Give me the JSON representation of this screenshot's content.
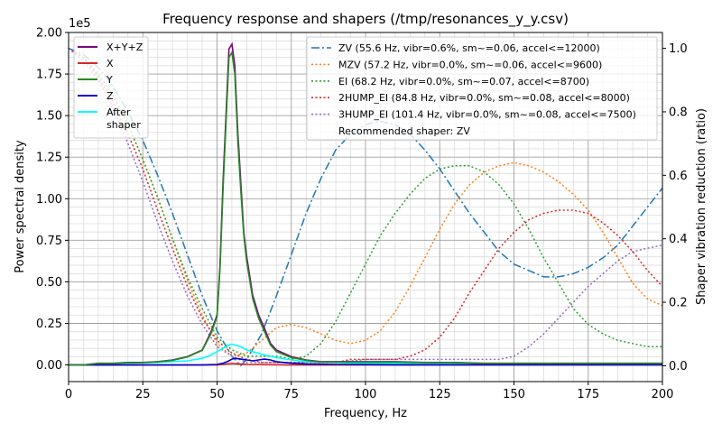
{
  "chart_data": {
    "type": "line",
    "title": "Frequency response and shapers (/tmp/resonances_y_y.csv)",
    "xlabel": "Frequency, Hz",
    "ylabel": "Power spectral density",
    "y2label": "Shaper vibration reduction (ratio)",
    "y_offset_label": "1e5",
    "xlim": [
      0,
      200
    ],
    "ylim": [
      -10000,
      200000
    ],
    "y2lim": [
      -0.05,
      1.05
    ],
    "x_ticks": [
      0,
      25,
      50,
      75,
      100,
      125,
      150,
      175,
      200
    ],
    "x_tick_labels": [
      "0",
      "25",
      "50",
      "75",
      "100",
      "125",
      "150",
      "175",
      "200"
    ],
    "y_ticks": [
      0,
      25000,
      50000,
      75000,
      100000,
      125000,
      150000,
      175000,
      200000
    ],
    "y_tick_labels": [
      "0.00",
      "0.25",
      "0.50",
      "0.75",
      "1.00",
      "1.25",
      "1.50",
      "1.75",
      "2.00"
    ],
    "y2_ticks": [
      0,
      0.2,
      0.4,
      0.6,
      0.8,
      1.0
    ],
    "y2_tick_labels": [
      "0.0",
      "0.2",
      "0.4",
      "0.6",
      "0.8",
      "1.0"
    ],
    "grid": true,
    "legend_left_placement": "top-left",
    "legend_right_placement": "top-right",
    "recommended_text": "Recommended shaper: ZV",
    "psd_series": [
      {
        "name": "X+Y+Z",
        "color": "#800080",
        "style": "solid",
        "x": [
          0,
          5,
          10,
          15,
          20,
          25,
          30,
          35,
          40,
          45,
          48,
          50,
          51,
          52,
          53,
          54,
          55,
          56,
          57,
          58,
          59,
          60,
          62,
          64,
          66,
          68,
          70,
          75,
          80,
          85,
          90,
          100,
          110,
          120,
          130,
          140,
          150,
          160,
          170,
          175,
          180,
          190,
          200
        ],
        "y": [
          0,
          0,
          1000,
          1000,
          1500,
          1500,
          2000,
          3000,
          5000,
          9000,
          20000,
          30000,
          60000,
          110000,
          150000,
          190000,
          193000,
          180000,
          140000,
          110000,
          80000,
          65000,
          42000,
          30000,
          22000,
          13000,
          9000,
          5000,
          3000,
          2000,
          2000,
          2000,
          2000,
          1500,
          1500,
          1000,
          1000,
          1000,
          1000,
          1000,
          1000,
          1000,
          1000
        ]
      },
      {
        "name": "X",
        "color": "#d62728",
        "style": "solid",
        "x": [
          0,
          50,
          52,
          54,
          55,
          56,
          58,
          60,
          65,
          70,
          75,
          100,
          150,
          200
        ],
        "y": [
          0,
          0,
          300,
          800,
          1000,
          800,
          500,
          300,
          200,
          100,
          0,
          0,
          0,
          0
        ]
      },
      {
        "name": "Y",
        "color": "#228b22",
        "style": "solid",
        "x": [
          0,
          5,
          10,
          15,
          20,
          25,
          30,
          35,
          40,
          45,
          48,
          50,
          51,
          52,
          53,
          54,
          55,
          56,
          57,
          58,
          59,
          60,
          62,
          64,
          66,
          68,
          70,
          75,
          80,
          85,
          90,
          100,
          110,
          120,
          130,
          140,
          150,
          160,
          170,
          175,
          180,
          190,
          200
        ],
        "y": [
          0,
          0,
          900,
          900,
          1400,
          1400,
          1900,
          2800,
          4800,
          8800,
          19000,
          29000,
          58000,
          105000,
          145000,
          185000,
          188000,
          175000,
          135000,
          105000,
          78000,
          62000,
          40000,
          28000,
          20000,
          12000,
          8000,
          4500,
          2800,
          1800,
          1800,
          1800,
          1800,
          1400,
          1400,
          900,
          900,
          900,
          900,
          900,
          900,
          900,
          900
        ]
      },
      {
        "name": "Z",
        "color": "#0000cd",
        "style": "solid",
        "x": [
          0,
          45,
          50,
          52,
          54,
          55,
          56,
          58,
          60,
          62,
          64,
          66,
          68,
          70,
          75,
          80,
          90,
          100,
          110,
          125,
          150,
          175,
          200
        ],
        "y": [
          0,
          0,
          300,
          1000,
          2500,
          3500,
          4000,
          3500,
          3000,
          2500,
          3000,
          3500,
          3000,
          2000,
          1000,
          500,
          300,
          200,
          100,
          100,
          100,
          100,
          100
        ]
      },
      {
        "name": "After\nshaper",
        "color": "#00ffff",
        "style": "solid",
        "x": [
          0,
          5,
          10,
          20,
          30,
          40,
          45,
          48,
          50,
          52,
          54,
          55,
          56,
          58,
          60,
          62,
          64,
          66,
          70,
          75,
          80,
          90,
          100,
          110,
          120,
          130,
          150,
          170,
          175,
          180,
          200
        ],
        "y": [
          0,
          0,
          500,
          1000,
          1500,
          2500,
          4000,
          6000,
          8000,
          10000,
          12000,
          12500,
          12000,
          11000,
          9000,
          8000,
          7000,
          6000,
          4500,
          3000,
          2000,
          1500,
          1000,
          1000,
          500,
          500,
          500,
          800,
          1000,
          800,
          500
        ]
      }
    ],
    "shaper_series": [
      {
        "name": "ZV (55.6 Hz, vibr=0.6%, sm~=0.06, accel<=12000)",
        "color": "#1f77b4",
        "style": "dashdot",
        "x": [
          0,
          5,
          10,
          15,
          20,
          25,
          30,
          35,
          40,
          45,
          50,
          55,
          58,
          60,
          65,
          70,
          75,
          80,
          85,
          90,
          95,
          100,
          105,
          110,
          115,
          120,
          125,
          130,
          135,
          140,
          145,
          150,
          155,
          160,
          165,
          170,
          175,
          180,
          185,
          190,
          195,
          200
        ],
        "y": [
          1.0,
          0.98,
          0.94,
          0.88,
          0.8,
          0.71,
          0.6,
          0.48,
          0.35,
          0.22,
          0.11,
          0.03,
          0.0,
          0.02,
          0.1,
          0.22,
          0.35,
          0.48,
          0.59,
          0.68,
          0.73,
          0.76,
          0.77,
          0.76,
          0.73,
          0.68,
          0.62,
          0.55,
          0.48,
          0.42,
          0.36,
          0.32,
          0.3,
          0.28,
          0.28,
          0.29,
          0.31,
          0.34,
          0.38,
          0.44,
          0.5,
          0.56
        ]
      },
      {
        "name": "MZV (57.2 Hz, vibr=0.0%, sm~=0.06, accel<=9600)",
        "color": "#ff7f0e",
        "style": "dotted",
        "x": [
          0,
          5,
          10,
          15,
          20,
          25,
          30,
          35,
          40,
          45,
          50,
          55,
          60,
          65,
          70,
          75,
          80,
          85,
          90,
          95,
          100,
          105,
          110,
          115,
          120,
          125,
          130,
          135,
          140,
          145,
          150,
          155,
          160,
          165,
          170,
          175,
          180,
          185,
          190,
          195,
          200
        ],
        "y": [
          1.0,
          0.97,
          0.92,
          0.85,
          0.76,
          0.65,
          0.53,
          0.4,
          0.27,
          0.16,
          0.07,
          0.03,
          0.04,
          0.08,
          0.12,
          0.13,
          0.12,
          0.1,
          0.08,
          0.07,
          0.08,
          0.11,
          0.17,
          0.25,
          0.34,
          0.43,
          0.51,
          0.57,
          0.61,
          0.63,
          0.64,
          0.63,
          0.61,
          0.58,
          0.54,
          0.49,
          0.42,
          0.34,
          0.26,
          0.21,
          0.19
        ]
      },
      {
        "name": "EI (68.2 Hz, vibr=0.0%, sm~=0.07, accel<=8700)",
        "color": "#2ca02c",
        "style": "dotted",
        "x": [
          0,
          5,
          10,
          15,
          20,
          25,
          30,
          35,
          40,
          45,
          50,
          55,
          60,
          65,
          70,
          75,
          80,
          85,
          90,
          95,
          100,
          105,
          110,
          115,
          120,
          125,
          130,
          135,
          140,
          145,
          150,
          155,
          160,
          165,
          170,
          175,
          180,
          185,
          190,
          195,
          200
        ],
        "y": [
          1.0,
          0.97,
          0.92,
          0.85,
          0.76,
          0.65,
          0.53,
          0.4,
          0.28,
          0.18,
          0.09,
          0.05,
          0.03,
          0.03,
          0.03,
          0.02,
          0.03,
          0.07,
          0.14,
          0.23,
          0.32,
          0.41,
          0.48,
          0.54,
          0.59,
          0.62,
          0.63,
          0.63,
          0.61,
          0.57,
          0.51,
          0.43,
          0.34,
          0.26,
          0.18,
          0.13,
          0.1,
          0.08,
          0.07,
          0.06,
          0.06
        ]
      },
      {
        "name": "2HUMP_EI (84.8 Hz, vibr=0.0%, sm~=0.08, accel<=8000)",
        "color": "#d62728",
        "style": "dotted",
        "x": [
          0,
          5,
          10,
          15,
          20,
          25,
          30,
          35,
          40,
          45,
          50,
          55,
          60,
          65,
          70,
          75,
          80,
          85,
          90,
          95,
          100,
          105,
          110,
          115,
          120,
          125,
          130,
          135,
          140,
          145,
          150,
          155,
          160,
          165,
          170,
          175,
          180,
          185,
          190,
          195,
          200
        ],
        "y": [
          1.0,
          0.97,
          0.91,
          0.83,
          0.73,
          0.62,
          0.49,
          0.37,
          0.25,
          0.15,
          0.08,
          0.04,
          0.02,
          0.01,
          0.01,
          0.01,
          0.01,
          0.01,
          0.01,
          0.02,
          0.02,
          0.02,
          0.02,
          0.03,
          0.05,
          0.09,
          0.15,
          0.23,
          0.3,
          0.37,
          0.42,
          0.46,
          0.48,
          0.49,
          0.49,
          0.48,
          0.45,
          0.41,
          0.36,
          0.3,
          0.25
        ]
      },
      {
        "name": "3HUMP_EI (101.4 Hz, vibr=0.0%, sm~=0.08, accel<=7500)",
        "color": "#9467bd",
        "style": "dotted",
        "x": [
          0,
          5,
          10,
          15,
          20,
          25,
          30,
          35,
          40,
          45,
          50,
          55,
          60,
          65,
          70,
          75,
          80,
          90,
          100,
          110,
          120,
          130,
          140,
          145,
          150,
          155,
          160,
          165,
          170,
          175,
          180,
          185,
          190,
          195,
          200
        ],
        "y": [
          1.0,
          0.96,
          0.9,
          0.81,
          0.7,
          0.58,
          0.45,
          0.33,
          0.22,
          0.13,
          0.06,
          0.03,
          0.01,
          0.01,
          0.01,
          0.01,
          0.01,
          0.01,
          0.02,
          0.02,
          0.02,
          0.02,
          0.02,
          0.02,
          0.03,
          0.06,
          0.1,
          0.15,
          0.2,
          0.25,
          0.29,
          0.33,
          0.36,
          0.37,
          0.38
        ]
      }
    ]
  }
}
